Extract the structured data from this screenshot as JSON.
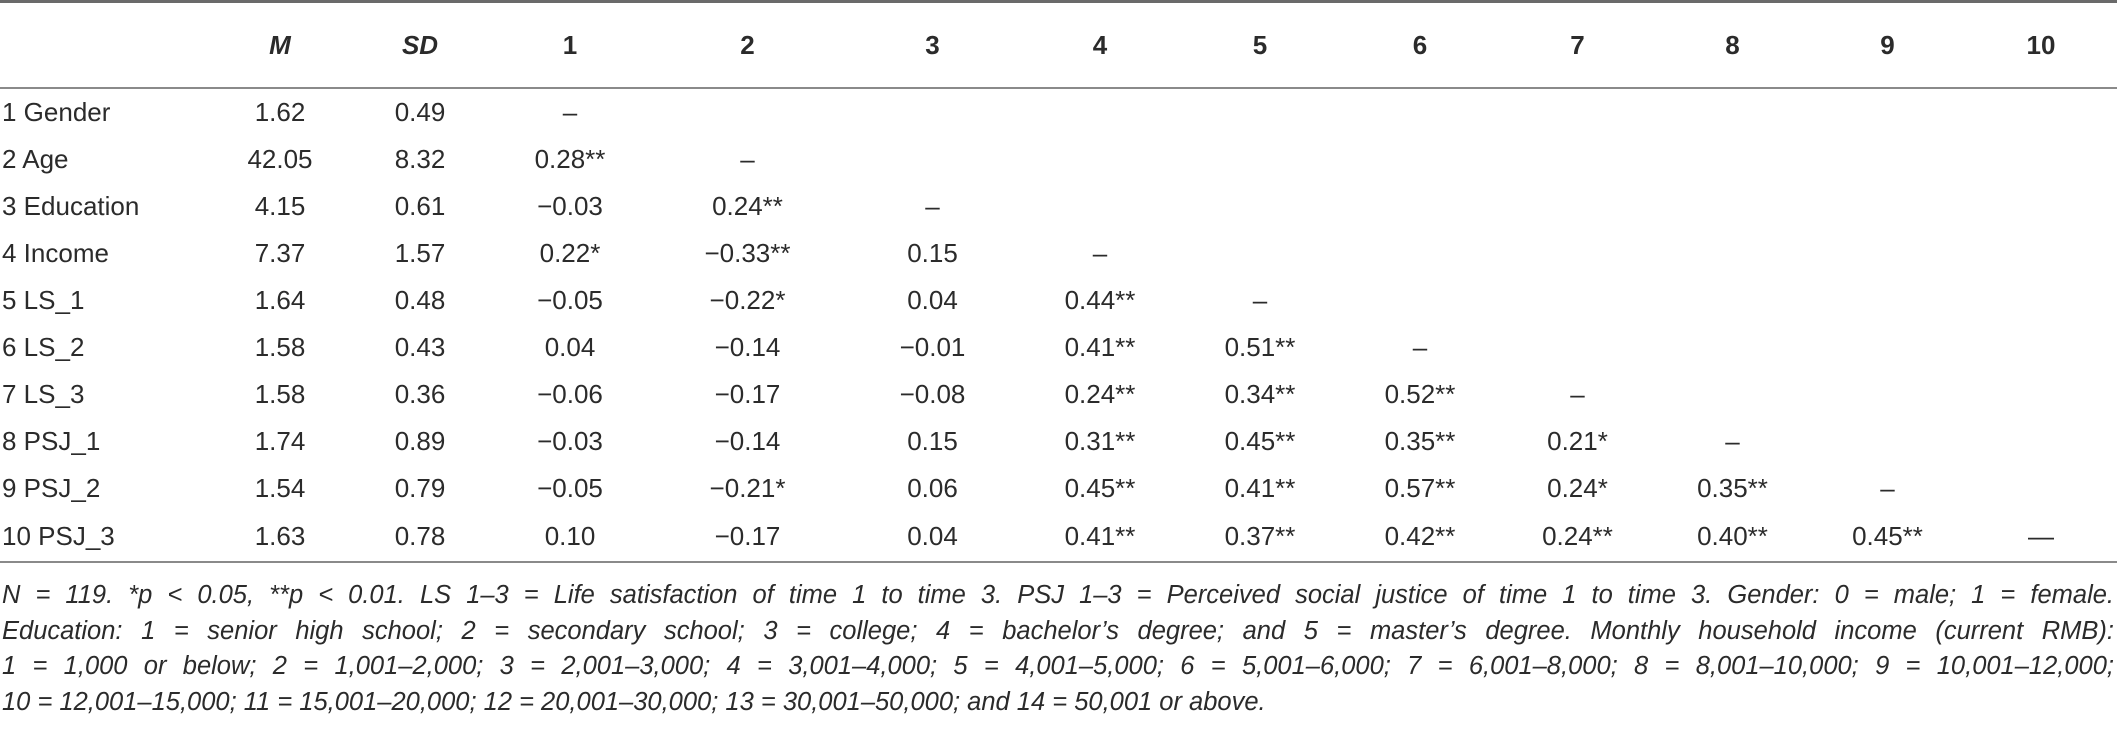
{
  "table": {
    "headers": [
      "",
      "M",
      "SD",
      "1",
      "2",
      "3",
      "4",
      "5",
      "6",
      "7",
      "8",
      "9",
      "10"
    ],
    "rows": [
      [
        "1 Gender",
        "1.62",
        "0.49",
        "–",
        "",
        "",
        "",
        "",
        "",
        "",
        "",
        "",
        ""
      ],
      [
        "2 Age",
        "42.05",
        "8.32",
        "0.28**",
        "–",
        "",
        "",
        "",
        "",
        "",
        "",
        "",
        ""
      ],
      [
        "3 Education",
        "4.15",
        "0.61",
        "−0.03",
        "0.24**",
        "–",
        "",
        "",
        "",
        "",
        "",
        "",
        ""
      ],
      [
        "4 Income",
        "7.37",
        "1.57",
        "0.22*",
        "−0.33**",
        "0.15",
        "–",
        "",
        "",
        "",
        "",
        "",
        ""
      ],
      [
        "5 LS_1",
        "1.64",
        "0.48",
        "−0.05",
        "−0.22*",
        "0.04",
        "0.44**",
        "–",
        "",
        "",
        "",
        "",
        ""
      ],
      [
        "6 LS_2",
        "1.58",
        "0.43",
        "0.04",
        "−0.14",
        "−0.01",
        "0.41**",
        "0.51**",
        "–",
        "",
        "",
        "",
        ""
      ],
      [
        "7 LS_3",
        "1.58",
        "0.36",
        "−0.06",
        "−0.17",
        "−0.08",
        "0.24**",
        "0.34**",
        "0.52**",
        "–",
        "",
        "",
        ""
      ],
      [
        "8 PSJ_1",
        "1.74",
        "0.89",
        "−0.03",
        "−0.14",
        "0.15",
        "0.31**",
        "0.45**",
        "0.35**",
        "0.21*",
        "–",
        "",
        ""
      ],
      [
        "9 PSJ_2",
        "1.54",
        "0.79",
        "−0.05",
        "−0.21*",
        "0.06",
        "0.45**",
        "0.41**",
        "0.57**",
        "0.24*",
        "0.35**",
        "–",
        ""
      ],
      [
        "10 PSJ_3",
        "1.63",
        "0.78",
        "0.10",
        "−0.17",
        "0.04",
        "0.41**",
        "0.37**",
        "0.42**",
        "0.24**",
        "0.40**",
        "0.45**",
        "—"
      ]
    ]
  },
  "note": {
    "lines": [
      "N = 119. *p < 0.05, **p < 0.01. LS 1–3 = Life satisfaction of time 1 to time 3. PSJ 1–3 = Perceived social justice of time 1 to time 3. Gender: 0 = male; 1 = female.",
      "Education: 1 = senior high school; 2 = secondary school; 3 = college; 4 = bachelor’s degree; and 5 = master’s degree. Monthly household income (current RMB):",
      "1 = 1,000 or below; 2 = 1,001–2,000; 3 = 2,001–3,000; 4 = 3,001–4,000; 5 = 4,001–5,000; 6 = 5,001–6,000; 7 = 6,001–8,000; 8 = 8,001–10,000; 9 = 10,001–12,000;",
      "10 = 12,001–15,000; 11 = 15,001–20,000; 12 = 20,001–30,000; 13 = 30,001–50,000; and 14 = 50,001 or above."
    ]
  }
}
